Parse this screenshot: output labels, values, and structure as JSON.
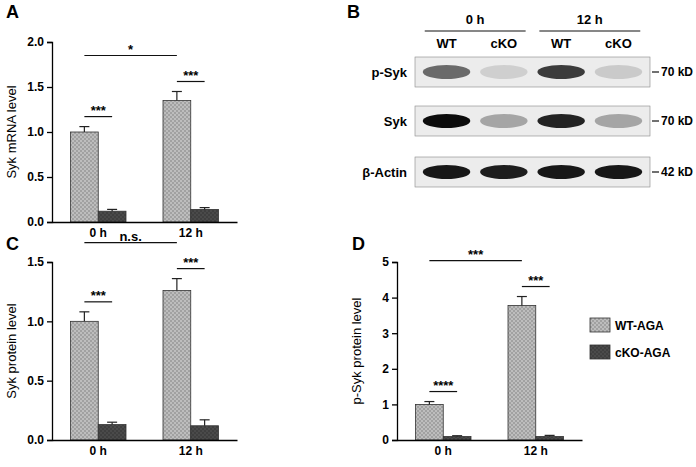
{
  "chart_data": [
    {
      "type": "bar",
      "panel": "A",
      "y_label": "Syk mRNA level",
      "categories": [
        "0 h",
        "12 h"
      ],
      "series": [
        {
          "name": "WT-AGA",
          "color": "#bdbdbd",
          "values": [
            1.0,
            1.35
          ],
          "errors": [
            0.06,
            0.1
          ]
        },
        {
          "name": "cKO-AGA",
          "color": "#4a4a4a",
          "values": [
            0.12,
            0.14
          ],
          "errors": [
            0.02,
            0.02
          ]
        }
      ],
      "ylim": [
        0,
        2.0
      ],
      "yticks": [
        {
          "value": 0,
          "label": "0.0"
        },
        {
          "value": 0.5,
          "label": "0.5"
        },
        {
          "value": 1.0,
          "label": "1.0"
        },
        {
          "value": 1.5,
          "label": "1.5"
        },
        {
          "value": 2.0,
          "label": "2.0"
        }
      ],
      "annotations": [
        {
          "text": "***",
          "from": {
            "category": "0 h",
            "series": "WT-AGA"
          },
          "to": {
            "category": "0 h",
            "series": "cKO-AGA"
          }
        },
        {
          "text": "***",
          "from": {
            "category": "12 h",
            "series": "WT-AGA"
          },
          "to": {
            "category": "12 h",
            "series": "cKO-AGA"
          }
        },
        {
          "text": "*",
          "from": {
            "category": "0 h",
            "series": "WT-AGA"
          },
          "to": {
            "category": "12 h",
            "series": "WT-AGA"
          }
        }
      ]
    },
    {
      "type": "bar",
      "panel": "C",
      "y_label": "Syk protein level",
      "categories": [
        "0 h",
        "12 h"
      ],
      "series": [
        {
          "name": "WT-AGA",
          "color": "#bdbdbd",
          "values": [
            1.0,
            1.26
          ],
          "errors": [
            0.08,
            0.1
          ]
        },
        {
          "name": "cKO-AGA",
          "color": "#4a4a4a",
          "values": [
            0.13,
            0.12
          ],
          "errors": [
            0.02,
            0.05
          ]
        }
      ],
      "ylim": [
        0,
        1.5
      ],
      "yticks": [
        {
          "value": 0,
          "label": "0.0"
        },
        {
          "value": 0.5,
          "label": "0.5"
        },
        {
          "value": 1.0,
          "label": "1.0"
        },
        {
          "value": 1.5,
          "label": "1.5"
        }
      ],
      "annotations": [
        {
          "text": "***",
          "from": {
            "category": "0 h",
            "series": "WT-AGA"
          },
          "to": {
            "category": "0 h",
            "series": "cKO-AGA"
          }
        },
        {
          "text": "***",
          "from": {
            "category": "12 h",
            "series": "WT-AGA"
          },
          "to": {
            "category": "12 h",
            "series": "cKO-AGA"
          }
        },
        {
          "text": "n.s.",
          "from": {
            "category": "0 h",
            "series": "WT-AGA"
          },
          "to": {
            "category": "12 h",
            "series": "WT-AGA"
          }
        }
      ]
    },
    {
      "type": "bar",
      "panel": "D",
      "y_label": "p-Syk protein level",
      "categories": [
        "0 h",
        "12 h"
      ],
      "series": [
        {
          "name": "WT-AGA",
          "color": "#bdbdbd",
          "values": [
            1.0,
            3.78
          ],
          "errors": [
            0.08,
            0.25
          ]
        },
        {
          "name": "cKO-AGA",
          "color": "#4a4a4a",
          "values": [
            0.1,
            0.1
          ],
          "errors": [
            0.02,
            0.03
          ]
        }
      ],
      "ylim": [
        0,
        5
      ],
      "yticks": [
        0,
        1,
        2,
        3,
        4,
        5
      ],
      "legend": "right",
      "annotations": [
        {
          "text": "****",
          "from": {
            "category": "0 h",
            "series": "WT-AGA"
          },
          "to": {
            "category": "0 h",
            "series": "cKO-AGA"
          }
        },
        {
          "text": "***",
          "from": {
            "category": "12 h",
            "series": "WT-AGA"
          },
          "to": {
            "category": "12 h",
            "series": "cKO-AGA"
          }
        },
        {
          "text": "***",
          "from": {
            "category": "0 h",
            "series": "WT-AGA"
          },
          "to": {
            "category": "12 h",
            "series": "WT-AGA"
          }
        }
      ]
    }
  ],
  "blot": {
    "panel": "B",
    "groups": [
      "0 h",
      "12 h"
    ],
    "lanes": [
      "WT",
      "cKO",
      "WT",
      "cKO"
    ],
    "rows": [
      {
        "name": "p-Syk",
        "size": "70 kD",
        "intensities": [
          0.55,
          0.12,
          0.75,
          0.14
        ]
      },
      {
        "name": "Syk",
        "size": "70 kD",
        "intensities": [
          0.95,
          0.3,
          0.85,
          0.3
        ]
      },
      {
        "name": "β-Actin",
        "size": "42 kD",
        "intensities": [
          0.9,
          0.88,
          0.9,
          0.9
        ]
      }
    ]
  }
}
